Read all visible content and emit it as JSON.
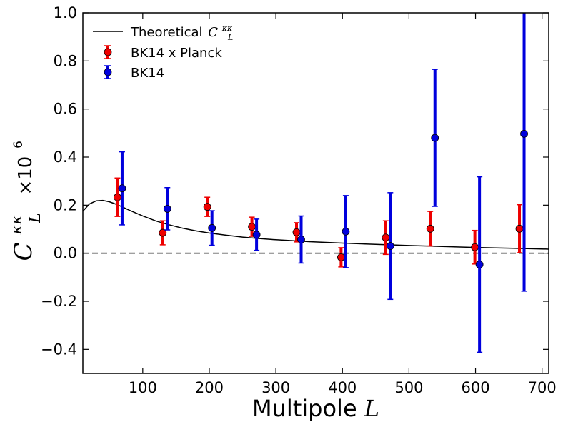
{
  "chart_data": {
    "type": "scatter",
    "xlabel_text": "Multipole",
    "xlabel_symbol": "L",
    "ylabel_symbol": "C",
    "ylabel_sub": "L",
    "ylabel_sup": "κκ",
    "ylabel_factor": "×10",
    "ylabel_factor_exp": "6",
    "xlim": [
      10,
      710
    ],
    "ylim": [
      -0.5,
      1.0
    ],
    "xticks": [
      100,
      200,
      300,
      400,
      500,
      600,
      700
    ],
    "yticks": [
      -0.4,
      -0.2,
      0.0,
      0.2,
      0.4,
      0.6,
      0.8,
      1.0
    ],
    "xtick_labels": [
      "100",
      "200",
      "300",
      "400",
      "500",
      "600",
      "700"
    ],
    "ytick_labels": [
      "−0.4",
      "−0.2",
      "0.0",
      "0.2",
      "0.4",
      "0.6",
      "0.8",
      "1.0"
    ],
    "zero_line": true,
    "legend_position": "top-left",
    "theory": {
      "name": "Theoretical",
      "name_symbol": "C",
      "name_sub": "L",
      "name_sup": "κκ",
      "color": "#000000",
      "x": [
        10,
        20,
        30,
        40,
        50,
        60,
        70,
        80,
        90,
        100,
        120,
        140,
        160,
        180,
        200,
        225,
        250,
        275,
        300,
        350,
        400,
        450,
        500,
        550,
        600,
        650,
        710
      ],
      "y": [
        0.175,
        0.205,
        0.218,
        0.22,
        0.214,
        0.204,
        0.192,
        0.179,
        0.167,
        0.155,
        0.134,
        0.118,
        0.104,
        0.093,
        0.084,
        0.075,
        0.067,
        0.061,
        0.056,
        0.048,
        0.042,
        0.037,
        0.032,
        0.028,
        0.024,
        0.021,
        0.017
      ]
    },
    "series": [
      {
        "name": "BK14 x Planck",
        "color": "#ee0000",
        "x": [
          62,
          130,
          197,
          264,
          331,
          398,
          465,
          532,
          599,
          666
        ],
        "y": [
          0.233,
          0.085,
          0.193,
          0.11,
          0.087,
          -0.017,
          0.065,
          0.102,
          0.025,
          0.102
        ],
        "err": [
          0.08,
          0.05,
          0.04,
          0.04,
          0.04,
          0.04,
          0.07,
          0.072,
          0.07,
          0.1
        ]
      },
      {
        "name": "BK14",
        "color": "#0000dd",
        "x": [
          69,
          137,
          204,
          271,
          338,
          405,
          472,
          539,
          606,
          673
        ],
        "y": [
          0.27,
          0.185,
          0.105,
          0.077,
          0.057,
          0.09,
          0.03,
          0.48,
          -0.047,
          0.497
        ],
        "err": [
          0.152,
          0.088,
          0.072,
          0.065,
          0.098,
          0.15,
          0.222,
          0.285,
          0.365,
          0.655
        ]
      }
    ]
  }
}
